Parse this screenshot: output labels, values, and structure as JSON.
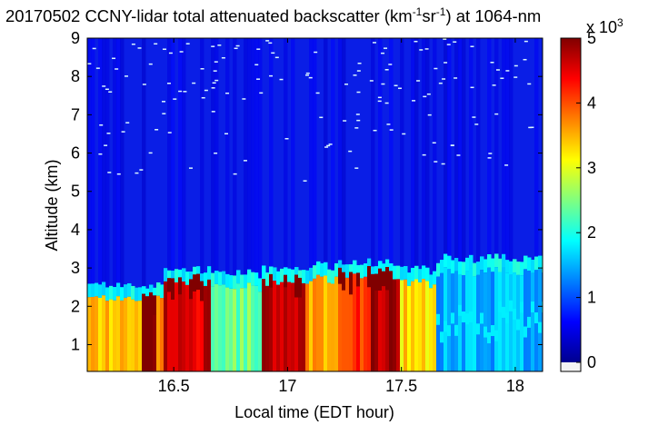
{
  "chart_data": {
    "type": "heatmap",
    "title": {
      "prefix": "20170502 CCNY-lidar total attenuated backscatter (km",
      "exp1": "-1",
      "mid": "sr",
      "exp2": "-1",
      "suffix": ") at 1064-nm"
    },
    "xlabel": "Local time (EDT hour)",
    "ylabel": "Altitude (km)",
    "xlim": [
      16.12,
      18.12
    ],
    "ylim": [
      0.3,
      9.0
    ],
    "xticks": [
      "16.5",
      "17",
      "17.5",
      "18"
    ],
    "yticks": [
      "1",
      "2",
      "3",
      "4",
      "5",
      "6",
      "7",
      "8",
      "9"
    ],
    "colorbar": {
      "range": [
        0,
        5
      ],
      "ticks": [
        "0",
        "1",
        "2",
        "3",
        "4",
        "5"
      ],
      "scale_label": "x 10",
      "scale_exponent": "3",
      "colormap": "jet"
    },
    "grid": false,
    "boundary_layer": {
      "description_free": true,
      "segments": [
        {
          "x": [
            16.12,
            16.36
          ],
          "top_km": 2.2,
          "value": 3.4
        },
        {
          "x": [
            16.36,
            16.42
          ],
          "top_km": 2.1,
          "value": 5.0
        },
        {
          "x": [
            16.42,
            16.46
          ],
          "top_km": 2.2,
          "value": 3.6
        },
        {
          "x": [
            16.46,
            16.66
          ],
          "top_km": 2.6,
          "value": 4.6
        },
        {
          "x": [
            16.66,
            16.88
          ],
          "top_km": 2.5,
          "value": 2.4
        },
        {
          "x": [
            16.88,
            17.08
          ],
          "top_km": 2.6,
          "value": 4.7
        },
        {
          "x": [
            17.08,
            17.22
          ],
          "top_km": 2.7,
          "value": 3.6
        },
        {
          "x": [
            17.22,
            17.36
          ],
          "top_km": 2.8,
          "value": 4.2
        },
        {
          "x": [
            17.36,
            17.5
          ],
          "top_km": 2.8,
          "value": 4.8
        },
        {
          "x": [
            17.5,
            17.66
          ],
          "top_km": 2.6,
          "value": 3.3
        },
        {
          "x": [
            17.66,
            18.12
          ],
          "top_km": 2.9,
          "value": 1.5
        }
      ]
    }
  }
}
